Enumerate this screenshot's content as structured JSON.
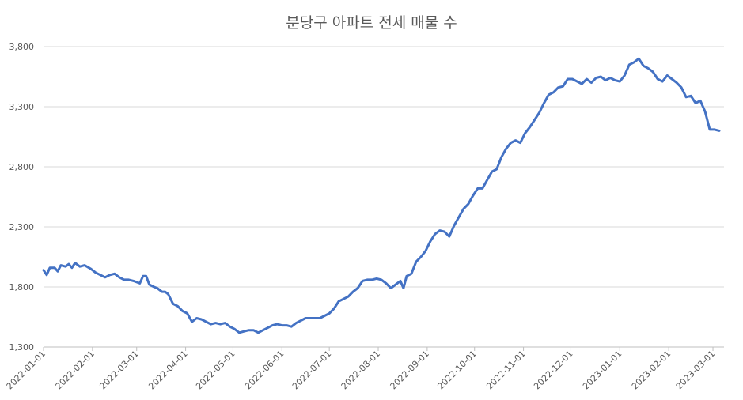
{
  "chart_data": {
    "type": "line",
    "title": "분당구 아파트 전세 매물 수",
    "xlabel": "",
    "ylabel": "",
    "ylim": [
      1300,
      3800
    ],
    "yticks": [
      1300,
      1800,
      2300,
      2800,
      3300,
      3800
    ],
    "ytick_labels": [
      "1,300",
      "1,800",
      "2,300",
      "2,800",
      "3,300",
      "3,800"
    ],
    "xlim": [
      "2022-01-01",
      "2023-03-08"
    ],
    "xticks": [
      "2022-01-01",
      "2022-02-01",
      "2022-03-01",
      "2022-04-01",
      "2022-05-01",
      "2022-06-01",
      "2022-07-01",
      "2022-08-01",
      "2022-09-01",
      "2022-10-01",
      "2022-11-01",
      "2022-12-01",
      "2023-01-01",
      "2023-02-01",
      "2023-03-01"
    ],
    "grid": true,
    "legend": "none",
    "series": [
      {
        "color": "#4472C4",
        "points": [
          [
            "2022-01-01",
            1940
          ],
          [
            "2022-01-03",
            1900
          ],
          [
            "2022-01-05",
            1960
          ],
          [
            "2022-01-08",
            1960
          ],
          [
            "2022-01-10",
            1930
          ],
          [
            "2022-01-12",
            1980
          ],
          [
            "2022-01-15",
            1970
          ],
          [
            "2022-01-17",
            1990
          ],
          [
            "2022-01-19",
            1960
          ],
          [
            "2022-01-21",
            2000
          ],
          [
            "2022-01-24",
            1970
          ],
          [
            "2022-01-27",
            1980
          ],
          [
            "2022-01-31",
            1950
          ],
          [
            "2022-02-03",
            1920
          ],
          [
            "2022-02-06",
            1900
          ],
          [
            "2022-02-09",
            1880
          ],
          [
            "2022-02-12",
            1900
          ],
          [
            "2022-02-15",
            1910
          ],
          [
            "2022-02-18",
            1880
          ],
          [
            "2022-02-21",
            1860
          ],
          [
            "2022-02-24",
            1860
          ],
          [
            "2022-02-27",
            1850
          ],
          [
            "2022-03-01",
            1840
          ],
          [
            "2022-03-03",
            1830
          ],
          [
            "2022-03-05",
            1890
          ],
          [
            "2022-03-07",
            1890
          ],
          [
            "2022-03-09",
            1820
          ],
          [
            "2022-03-12",
            1800
          ],
          [
            "2022-03-14",
            1790
          ],
          [
            "2022-03-17",
            1760
          ],
          [
            "2022-03-19",
            1760
          ],
          [
            "2022-03-21",
            1740
          ],
          [
            "2022-03-24",
            1660
          ],
          [
            "2022-03-27",
            1640
          ],
          [
            "2022-03-30",
            1600
          ],
          [
            "2022-04-02",
            1580
          ],
          [
            "2022-04-05",
            1510
          ],
          [
            "2022-04-08",
            1540
          ],
          [
            "2022-04-11",
            1530
          ],
          [
            "2022-04-14",
            1510
          ],
          [
            "2022-04-17",
            1490
          ],
          [
            "2022-04-20",
            1500
          ],
          [
            "2022-04-23",
            1490
          ],
          [
            "2022-04-26",
            1500
          ],
          [
            "2022-04-29",
            1470
          ],
          [
            "2022-05-02",
            1450
          ],
          [
            "2022-05-05",
            1420
          ],
          [
            "2022-05-08",
            1430
          ],
          [
            "2022-05-11",
            1440
          ],
          [
            "2022-05-14",
            1440
          ],
          [
            "2022-05-17",
            1420
          ],
          [
            "2022-05-20",
            1440
          ],
          [
            "2022-05-23",
            1460
          ],
          [
            "2022-05-26",
            1480
          ],
          [
            "2022-05-29",
            1490
          ],
          [
            "2022-06-01",
            1480
          ],
          [
            "2022-06-04",
            1480
          ],
          [
            "2022-06-07",
            1470
          ],
          [
            "2022-06-10",
            1500
          ],
          [
            "2022-06-13",
            1520
          ],
          [
            "2022-06-16",
            1540
          ],
          [
            "2022-06-19",
            1540
          ],
          [
            "2022-06-22",
            1540
          ],
          [
            "2022-06-25",
            1540
          ],
          [
            "2022-06-28",
            1560
          ],
          [
            "2022-07-01",
            1580
          ],
          [
            "2022-07-04",
            1620
          ],
          [
            "2022-07-07",
            1680
          ],
          [
            "2022-07-10",
            1700
          ],
          [
            "2022-07-13",
            1720
          ],
          [
            "2022-07-16",
            1760
          ],
          [
            "2022-07-19",
            1790
          ],
          [
            "2022-07-22",
            1850
          ],
          [
            "2022-07-25",
            1860
          ],
          [
            "2022-07-28",
            1860
          ],
          [
            "2022-07-31",
            1870
          ],
          [
            "2022-08-03",
            1860
          ],
          [
            "2022-08-06",
            1830
          ],
          [
            "2022-08-09",
            1790
          ],
          [
            "2022-08-12",
            1820
          ],
          [
            "2022-08-15",
            1850
          ],
          [
            "2022-08-17",
            1790
          ],
          [
            "2022-08-19",
            1890
          ],
          [
            "2022-08-22",
            1910
          ],
          [
            "2022-08-25",
            2010
          ],
          [
            "2022-08-28",
            2050
          ],
          [
            "2022-08-31",
            2100
          ],
          [
            "2022-09-03",
            2180
          ],
          [
            "2022-09-06",
            2240
          ],
          [
            "2022-09-09",
            2270
          ],
          [
            "2022-09-12",
            2260
          ],
          [
            "2022-09-15",
            2220
          ],
          [
            "2022-09-18",
            2310
          ],
          [
            "2022-09-21",
            2380
          ],
          [
            "2022-09-24",
            2450
          ],
          [
            "2022-09-27",
            2490
          ],
          [
            "2022-09-30",
            2560
          ],
          [
            "2022-10-03",
            2620
          ],
          [
            "2022-10-06",
            2620
          ],
          [
            "2022-10-09",
            2690
          ],
          [
            "2022-10-12",
            2760
          ],
          [
            "2022-10-15",
            2780
          ],
          [
            "2022-10-18",
            2880
          ],
          [
            "2022-10-21",
            2950
          ],
          [
            "2022-10-24",
            3000
          ],
          [
            "2022-10-27",
            3020
          ],
          [
            "2022-10-30",
            3000
          ],
          [
            "2022-11-02",
            3080
          ],
          [
            "2022-11-05",
            3130
          ],
          [
            "2022-11-08",
            3190
          ],
          [
            "2022-11-11",
            3250
          ],
          [
            "2022-11-14",
            3330
          ],
          [
            "2022-11-17",
            3400
          ],
          [
            "2022-11-20",
            3420
          ],
          [
            "2022-11-23",
            3460
          ],
          [
            "2022-11-26",
            3470
          ],
          [
            "2022-11-29",
            3530
          ],
          [
            "2022-12-02",
            3530
          ],
          [
            "2022-12-05",
            3510
          ],
          [
            "2022-12-08",
            3490
          ],
          [
            "2022-12-11",
            3530
          ],
          [
            "2022-12-14",
            3500
          ],
          [
            "2022-12-17",
            3540
          ],
          [
            "2022-12-20",
            3550
          ],
          [
            "2022-12-23",
            3520
          ],
          [
            "2022-12-26",
            3540
          ],
          [
            "2022-12-29",
            3520
          ],
          [
            "2023-01-01",
            3510
          ],
          [
            "2023-01-04",
            3560
          ],
          [
            "2023-01-07",
            3650
          ],
          [
            "2023-01-10",
            3670
          ],
          [
            "2023-01-13",
            3700
          ],
          [
            "2023-01-16",
            3640
          ],
          [
            "2023-01-19",
            3620
          ],
          [
            "2023-01-22",
            3590
          ],
          [
            "2023-01-25",
            3530
          ],
          [
            "2023-01-28",
            3510
          ],
          [
            "2023-01-31",
            3560
          ],
          [
            "2023-02-03",
            3530
          ],
          [
            "2023-02-06",
            3500
          ],
          [
            "2023-02-09",
            3460
          ],
          [
            "2023-02-12",
            3380
          ],
          [
            "2023-02-15",
            3390
          ],
          [
            "2023-02-18",
            3330
          ],
          [
            "2023-02-21",
            3350
          ],
          [
            "2023-02-24",
            3260
          ],
          [
            "2023-02-27",
            3110
          ],
          [
            "2023-03-02",
            3110
          ],
          [
            "2023-03-05",
            3100
          ]
        ]
      }
    ]
  }
}
